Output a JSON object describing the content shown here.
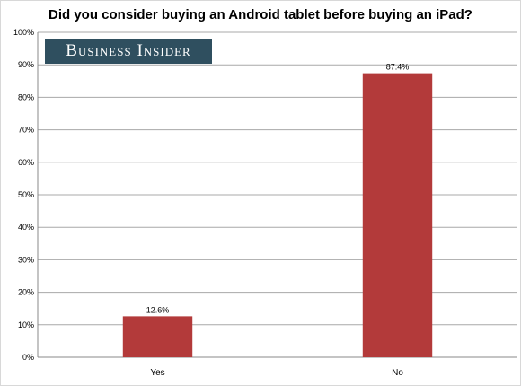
{
  "chart_data": {
    "type": "bar",
    "title": "Did you consider buying an Android tablet before buying an iPad?",
    "categories": [
      "Yes",
      "No"
    ],
    "values": [
      12.6,
      87.4
    ],
    "data_labels": [
      "12.6%",
      "87.4%"
    ],
    "xlabel": "",
    "ylabel": "",
    "ylim": [
      0,
      100
    ],
    "yticks": [
      0,
      10,
      20,
      30,
      40,
      50,
      60,
      70,
      80,
      90,
      100
    ],
    "ytick_labels": [
      "0%",
      "10%",
      "20%",
      "30%",
      "40%",
      "50%",
      "60%",
      "70%",
      "80%",
      "90%",
      "100%"
    ],
    "grid": true,
    "legend": "none",
    "bar_color": "#b33a3a"
  },
  "branding": {
    "logo_text": "Business Insider",
    "background_color": "#2f4f5f"
  }
}
